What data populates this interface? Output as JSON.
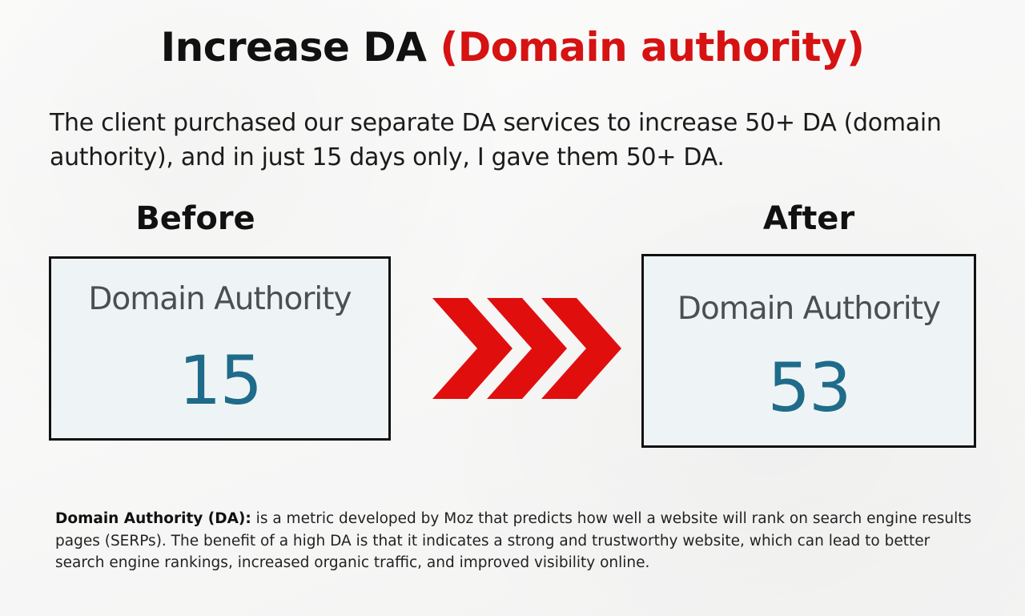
{
  "headline": {
    "main": "Increase DA",
    "highlight": "(Domain authority)"
  },
  "intro": "The client purchased our separate DA services to increase 50+ DA (domain authority), and in just 15 days only, I gave them 50+ DA.",
  "comparison": {
    "before": {
      "label": "Before",
      "metric": "Domain Authority",
      "value": "15"
    },
    "after": {
      "label": "After",
      "metric": "Domain Authority",
      "value": "53"
    },
    "arrow_icon": "triple-chevron-right-icon"
  },
  "footnote": {
    "term": "Domain Authority (DA):",
    "text": " is a metric developed by Moz that predicts how well a website will rank on search engine results pages (SERPs). The benefit of a high DA is that it indicates a strong and trustworthy website, which can lead to better search engine rankings, increased organic traffic, and improved visibility online."
  },
  "colors": {
    "highlight": "#d61212",
    "metric_value": "#1f6b8a",
    "card_background": "#eef4f5",
    "arrow": "#e10e0e"
  }
}
